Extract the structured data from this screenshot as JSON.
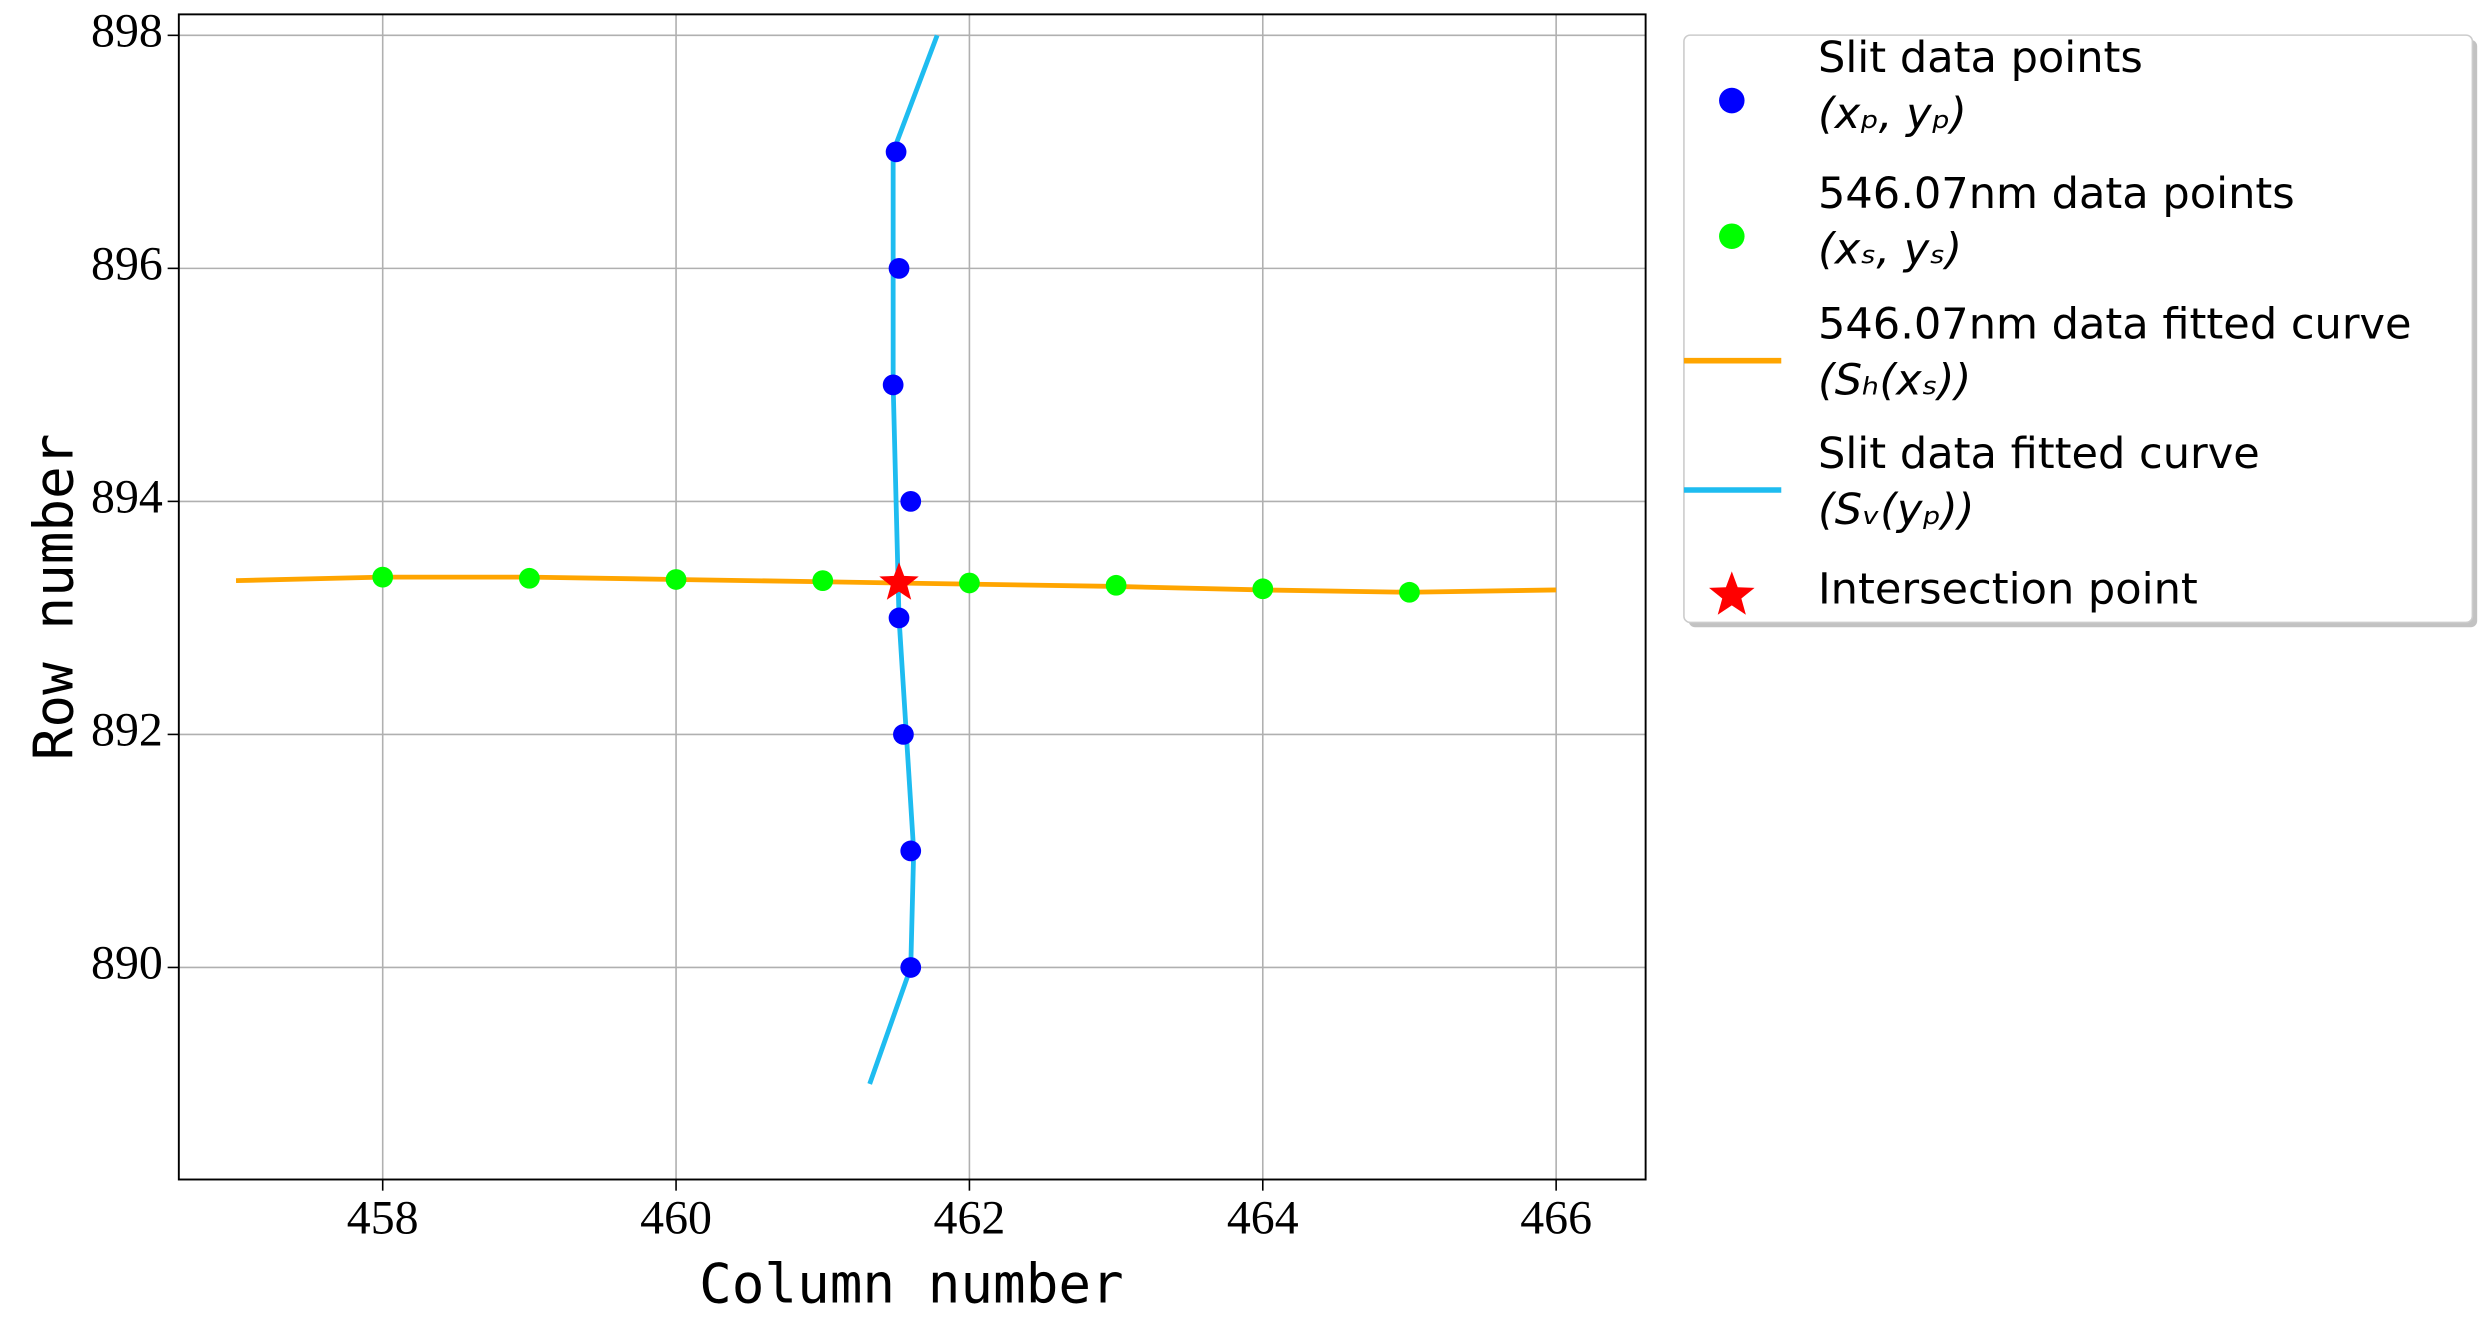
{
  "chart_data": {
    "type": "scatter",
    "xlabel": "Column number",
    "ylabel": "Row number",
    "xlim": [
      456.61,
      466.61
    ],
    "ylim": [
      888.18,
      898.18
    ],
    "xticks": [
      458,
      460,
      462,
      464,
      466
    ],
    "yticks": [
      890,
      892,
      894,
      896,
      898
    ],
    "grid": true,
    "legend": "outside-right",
    "series": [
      {
        "name": [
          "Slit data points",
          "(xₚ, yₚ)"
        ],
        "kind": "points",
        "color": "#0000ff",
        "x": [
          461.5,
          461.52,
          461.48,
          461.6,
          461.52,
          461.55,
          461.6,
          461.6
        ],
        "values": [
          897,
          896,
          895,
          894,
          893,
          892,
          891,
          890
        ]
      },
      {
        "name": [
          "546.07nm data points",
          "(xₛ, yₛ)"
        ],
        "kind": "points",
        "color": "#00ff00",
        "x": [
          458,
          459,
          460,
          461,
          462,
          463,
          464,
          465
        ],
        "values": [
          893.35,
          893.34,
          893.33,
          893.32,
          893.3,
          893.28,
          893.25,
          893.22
        ]
      },
      {
        "name": [
          "546.07nm data fitted curve",
          "(Sₕ(xₛ))"
        ],
        "kind": "line",
        "color": "#ffa500",
        "x": [
          457,
          458,
          459,
          460,
          461,
          462,
          463,
          464,
          465,
          466
        ],
        "values": [
          893.32,
          893.35,
          893.35,
          893.33,
          893.31,
          893.29,
          893.27,
          893.24,
          893.22,
          893.24
        ]
      },
      {
        "name": [
          "Slit data fitted curve",
          "(Sᵥ(yₚ))"
        ],
        "kind": "line",
        "color": "#1ebcf0",
        "x": [
          461.32,
          461.6,
          461.62,
          461.57,
          461.52,
          461.5,
          461.48,
          461.48,
          461.48,
          461.78
        ],
        "values": [
          889,
          890,
          891,
          892,
          893,
          894,
          895,
          896,
          897,
          898
        ]
      },
      {
        "name": [
          "Intersection point"
        ],
        "kind": "star",
        "color": "#ff0000",
        "x": [
          461.52
        ],
        "values": [
          893.3
        ]
      }
    ]
  }
}
